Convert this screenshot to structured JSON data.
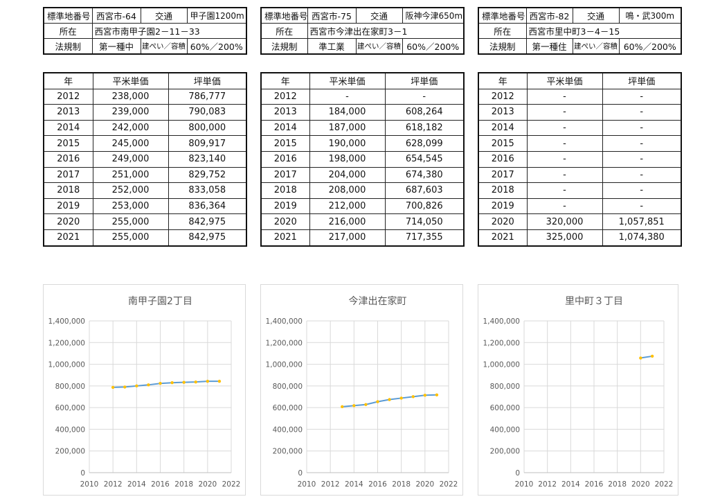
{
  "info_label_number": "標準地番号",
  "info_label_transport": "交通",
  "info_label_location": "所在",
  "info_label_zoning": "法規制",
  "info_label_ratio": "建ぺい／容積",
  "price_headers": [
    "年",
    "平米単価",
    "坪単価"
  ],
  "sites": [
    {
      "number": "西宮市-64",
      "transport": "甲子園1200m",
      "location": "西宮市南甲子園2－11－33",
      "zoning": "第一種中",
      "ratio": "60%／200%",
      "rows": [
        [
          "2012",
          "238,000",
          "786,777"
        ],
        [
          "2013",
          "239,000",
          "790,083"
        ],
        [
          "2014",
          "242,000",
          "800,000"
        ],
        [
          "2015",
          "245,000",
          "809,917"
        ],
        [
          "2016",
          "249,000",
          "823,140"
        ],
        [
          "2017",
          "251,000",
          "829,752"
        ],
        [
          "2018",
          "252,000",
          "833,058"
        ],
        [
          "2019",
          "253,000",
          "836,364"
        ],
        [
          "2020",
          "255,000",
          "842,975"
        ],
        [
          "2021",
          "255,000",
          "842,975"
        ]
      ]
    },
    {
      "number": "西宮市-75",
      "transport": "阪神今津650m",
      "location": "西宮市今津出在家町3－1",
      "zoning": "準工業",
      "ratio": "60%／200%",
      "rows": [
        [
          "2012",
          "-",
          "-"
        ],
        [
          "2013",
          "184,000",
          "608,264"
        ],
        [
          "2014",
          "187,000",
          "618,182"
        ],
        [
          "2015",
          "190,000",
          "628,099"
        ],
        [
          "2016",
          "198,000",
          "654,545"
        ],
        [
          "2017",
          "204,000",
          "674,380"
        ],
        [
          "2018",
          "208,000",
          "687,603"
        ],
        [
          "2019",
          "212,000",
          "700,826"
        ],
        [
          "2020",
          "216,000",
          "714,050"
        ],
        [
          "2021",
          "217,000",
          "717,355"
        ]
      ]
    },
    {
      "number": "西宮市-82",
      "transport": "鳴・武300m",
      "location": "西宮市里中町3－4－15",
      "zoning": "第一種住",
      "ratio": "60%／200%",
      "rows": [
        [
          "2012",
          "-",
          "-"
        ],
        [
          "2013",
          "-",
          "-"
        ],
        [
          "2014",
          "-",
          "-"
        ],
        [
          "2015",
          "-",
          "-"
        ],
        [
          "2016",
          "-",
          "-"
        ],
        [
          "2017",
          "-",
          "-"
        ],
        [
          "2018",
          "-",
          "-"
        ],
        [
          "2019",
          "-",
          "-"
        ],
        [
          "2020",
          "320,000",
          "1,057,851"
        ],
        [
          "2021",
          "325,000",
          "1,074,380"
        ]
      ]
    }
  ],
  "chart_data": [
    {
      "type": "line",
      "title": "南甲子園2丁目",
      "x": [
        2012,
        2013,
        2014,
        2015,
        2016,
        2017,
        2018,
        2019,
        2020,
        2021
      ],
      "series": [
        {
          "values": [
            786777,
            790083,
            800000,
            809917,
            823140,
            829752,
            833058,
            836364,
            842975,
            842975
          ]
        }
      ],
      "xlim": [
        2010,
        2022
      ],
      "ylim": [
        0,
        1400000
      ],
      "xticks": [
        "2010",
        "2012",
        "2014",
        "2016",
        "2018",
        "2020",
        "2022"
      ],
      "yticks": [
        "0",
        "200,000",
        "400,000",
        "600,000",
        "800,000",
        "1,000,000",
        "1,200,000",
        "1,400,000"
      ],
      "grid": true,
      "line_color": "#5b9bd5",
      "marker_color": "#ffc000"
    },
    {
      "type": "line",
      "title": "今津出在家町",
      "x": [
        2013,
        2014,
        2015,
        2016,
        2017,
        2018,
        2019,
        2020,
        2021
      ],
      "series": [
        {
          "values": [
            608264,
            618182,
            628099,
            654545,
            674380,
            687603,
            700826,
            714050,
            717355
          ]
        }
      ],
      "xlim": [
        2010,
        2022
      ],
      "ylim": [
        0,
        1400000
      ],
      "xticks": [
        "2010",
        "2012",
        "2014",
        "2016",
        "2018",
        "2020",
        "2022"
      ],
      "yticks": [
        "0",
        "200,000",
        "400,000",
        "600,000",
        "800,000",
        "1,000,000",
        "1,200,000",
        "1,400,000"
      ],
      "grid": true,
      "line_color": "#5b9bd5",
      "marker_color": "#ffc000"
    },
    {
      "type": "line",
      "title": "里中町３丁目",
      "x": [
        2020,
        2021
      ],
      "series": [
        {
          "values": [
            1057851,
            1074380
          ]
        }
      ],
      "xlim": [
        2010,
        2022
      ],
      "ylim": [
        0,
        1400000
      ],
      "xticks": [
        "2010",
        "2012",
        "2014",
        "2016",
        "2018",
        "2020",
        "2022"
      ],
      "yticks": [
        "0",
        "200,000",
        "400,000",
        "600,000",
        "800,000",
        "1,000,000",
        "1,200,000",
        "1,400,000"
      ],
      "grid": true,
      "line_color": "#5b9bd5",
      "marker_color": "#ffc000"
    }
  ]
}
